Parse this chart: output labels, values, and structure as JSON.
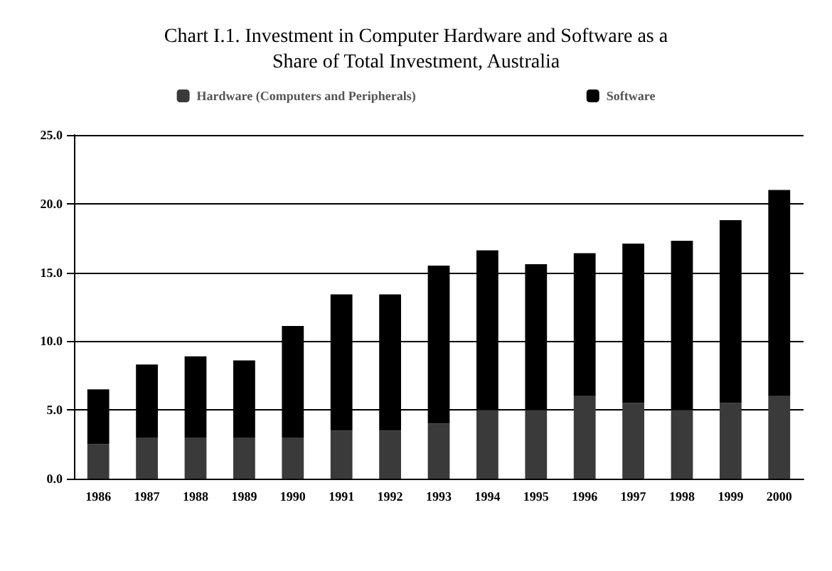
{
  "chart_data": {
    "type": "bar",
    "title": "Chart I.1. Investment in Computer Hardware and Software as a\nShare of Total Investment, Australia",
    "categories": [
      "1986",
      "1987",
      "1988",
      "1989",
      "1990",
      "1991",
      "1992",
      "1993",
      "1994",
      "1995",
      "1996",
      "1997",
      "1998",
      "1999",
      "2000"
    ],
    "series": [
      {
        "name": "Hardware (Computers and Peripherals)",
        "color": "#3a3a3a",
        "values": [
          2.5,
          3.0,
          3.0,
          3.0,
          3.0,
          3.5,
          3.5,
          4.0,
          5.0,
          5.0,
          6.0,
          5.5,
          5.0,
          5.5,
          6.0
        ]
      },
      {
        "name": "Software",
        "color": "#000000",
        "values": [
          4.0,
          5.3,
          5.9,
          5.6,
          8.1,
          9.9,
          9.9,
          11.5,
          11.6,
          10.6,
          10.4,
          11.6,
          12.3,
          13.3,
          15.0
        ]
      }
    ],
    "stacked": true,
    "ylim": [
      0,
      25
    ],
    "yticks": [
      {
        "value": 0,
        "label": "0.0"
      },
      {
        "value": 5,
        "label": "5.0"
      },
      {
        "value": 10,
        "label": "10.0"
      },
      {
        "value": 15,
        "label": "15.0"
      },
      {
        "value": 20,
        "label": "20.0"
      },
      {
        "value": 25,
        "label": "25.0"
      }
    ],
    "grid": "y",
    "legend": "top"
  }
}
